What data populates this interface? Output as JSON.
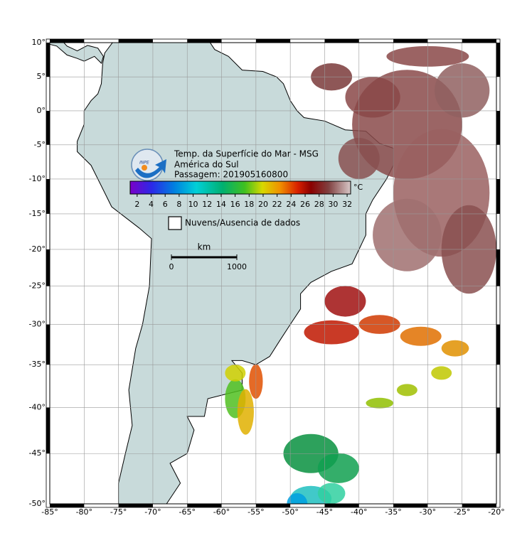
{
  "map": {
    "xlim": [
      -85,
      -20
    ],
    "ylim": [
      -50,
      10
    ],
    "grid": true,
    "xticks": [
      {
        "value": -85,
        "label": "-85°"
      },
      {
        "value": -80,
        "label": "-80°"
      },
      {
        "value": -75,
        "label": "-75°"
      },
      {
        "value": -70,
        "label": "-70°"
      },
      {
        "value": -65,
        "label": "-65°"
      },
      {
        "value": -60,
        "label": "-60°"
      },
      {
        "value": -55,
        "label": "-55°"
      },
      {
        "value": -50,
        "label": "-50°"
      },
      {
        "value": -45,
        "label": "-45°"
      },
      {
        "value": -40,
        "label": "-40°"
      },
      {
        "value": -35,
        "label": "-35°"
      },
      {
        "value": -30,
        "label": "-30°"
      },
      {
        "value": -25,
        "label": "-25°"
      },
      {
        "value": -20,
        "label": "-20°"
      }
    ],
    "yticks": [
      {
        "value": 10,
        "label": "10°"
      },
      {
        "value": 5,
        "label": "5°"
      },
      {
        "value": 0,
        "label": "0°"
      },
      {
        "value": -5,
        "label": "-5°"
      },
      {
        "value": -10,
        "label": "-10°"
      },
      {
        "value": -15,
        "label": "-15°"
      },
      {
        "value": -20,
        "label": "-20°"
      },
      {
        "value": -25,
        "label": "-25°"
      },
      {
        "value": -30,
        "label": "-30°"
      },
      {
        "value": -35,
        "label": "-35°"
      },
      {
        "value": -40,
        "label": "-40°"
      },
      {
        "value": -45,
        "label": "-45°"
      },
      {
        "value": -50,
        "label": "-50°"
      }
    ]
  },
  "title": {
    "line1": "Temp. da Superfície do Mar - MSG",
    "line2": "América do Sul",
    "line3": "Passagem: 201905160800"
  },
  "logo": "INPE",
  "colorbar": {
    "lim": [
      1,
      32.5
    ],
    "ticks": [
      2,
      4,
      6,
      8,
      10,
      12,
      14,
      16,
      18,
      20,
      22,
      24,
      26,
      28,
      30,
      32
    ],
    "unit": "°C"
  },
  "legend": "Nuvens/Ausencia de dados",
  "scale": {
    "unit": "km",
    "ticks": [
      0,
      1000
    ]
  }
}
